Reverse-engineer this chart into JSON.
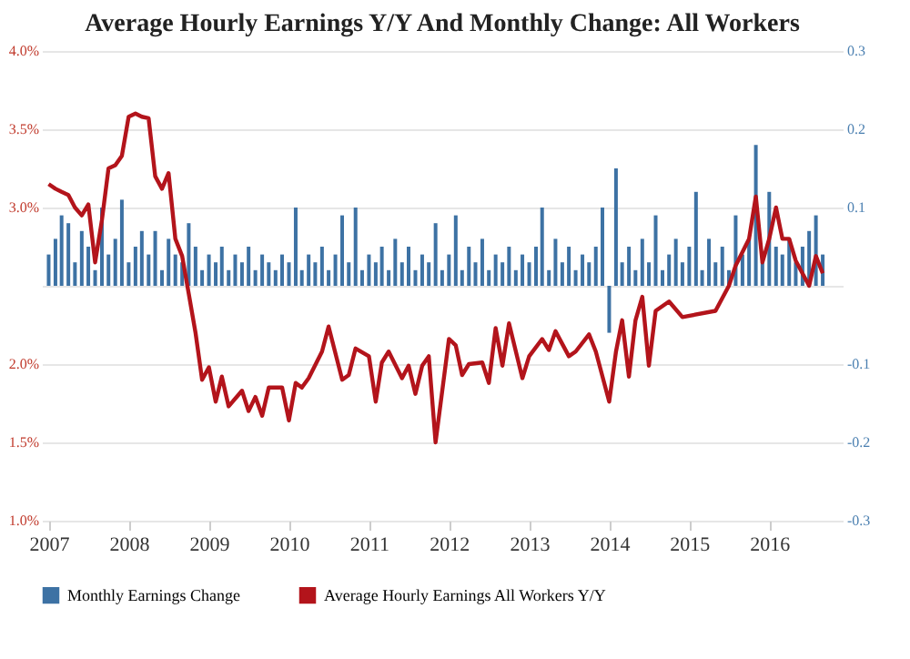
{
  "chart_data": {
    "type": "bar",
    "title": "Average Hourly Earnings Y/Y And Monthly Change: All Workers",
    "xlim": [
      "2006-12",
      "2016-12"
    ],
    "xticks": [
      {
        "value": "2007",
        "label": "2007"
      },
      {
        "value": "2008",
        "label": "2008"
      },
      {
        "value": "2009",
        "label": "2009"
      },
      {
        "value": "2010",
        "label": "2010"
      },
      {
        "value": "2011",
        "label": "2011"
      },
      {
        "value": "2012",
        "label": "2012"
      },
      {
        "value": "2013",
        "label": "2013"
      },
      {
        "value": "2014",
        "label": "2014"
      },
      {
        "value": "2015",
        "label": "2015"
      },
      {
        "value": "2016",
        "label": "2016"
      }
    ],
    "ylim": [
      1,
      4
    ],
    "yticks": [
      {
        "value": 1,
        "label": "1.0%"
      },
      {
        "value": 1.5,
        "label": "1.5%"
      },
      {
        "value": 2,
        "label": "2.0%"
      },
      {
        "value": 2.5,
        "label": null
      },
      {
        "value": 3,
        "label": "3.0%"
      },
      {
        "value": 3.5,
        "label": "3.5%"
      },
      {
        "value": 4,
        "label": "4.0%"
      }
    ],
    "y2lim": [
      -0.3,
      0.3
    ],
    "y2ticks": [
      -0.3,
      -0.2,
      -0.1,
      0.1,
      0.2,
      0.3
    ],
    "grid": "y",
    "legend": "bottom",
    "series": [
      {
        "name": "Monthly Earnings Change",
        "axis": "y2",
        "color": "#3d72a4",
        "x": [
          "2007-01",
          "2007-02",
          "2007-03",
          "2007-04",
          "2007-05",
          "2007-06",
          "2007-07",
          "2007-08",
          "2007-09",
          "2007-10",
          "2007-11",
          "2007-12",
          "2008-01",
          "2008-02",
          "2008-03",
          "2008-04",
          "2008-05",
          "2008-06",
          "2008-07",
          "2008-08",
          "2008-09",
          "2008-10",
          "2008-11",
          "2008-12",
          "2009-01",
          "2009-02",
          "2009-03",
          "2009-04",
          "2009-05",
          "2009-06",
          "2009-07",
          "2009-08",
          "2009-09",
          "2009-10",
          "2009-11",
          "2009-12",
          "2010-01",
          "2010-02",
          "2010-03",
          "2010-04",
          "2010-05",
          "2010-06",
          "2010-07",
          "2010-08",
          "2010-09",
          "2010-10",
          "2010-11",
          "2010-12",
          "2011-01",
          "2011-02",
          "2011-03",
          "2011-04",
          "2011-05",
          "2011-06",
          "2011-07",
          "2011-08",
          "2011-09",
          "2011-10",
          "2011-11",
          "2011-12",
          "2012-01",
          "2012-02",
          "2012-03",
          "2012-04",
          "2012-05",
          "2012-06",
          "2012-07",
          "2012-08",
          "2012-09",
          "2012-10",
          "2012-11",
          "2012-12",
          "2013-01",
          "2013-02",
          "2013-03",
          "2013-04",
          "2013-05",
          "2013-06",
          "2013-07",
          "2013-08",
          "2013-09",
          "2013-10",
          "2013-11",
          "2013-12",
          "2014-01",
          "2014-02",
          "2014-03",
          "2014-04",
          "2014-05",
          "2014-06",
          "2014-07",
          "2014-08",
          "2014-09",
          "2014-10",
          "2014-11",
          "2014-12",
          "2015-01",
          "2015-02",
          "2015-03",
          "2015-04",
          "2015-05",
          "2015-06",
          "2015-07",
          "2015-08",
          "2015-09",
          "2015-10",
          "2015-11",
          "2015-12",
          "2016-01",
          "2016-02",
          "2016-03",
          "2016-04",
          "2016-05",
          "2016-06",
          "2016-07",
          "2016-08",
          "2016-09"
        ],
        "values": [
          0.04,
          0.06,
          0.09,
          0.08,
          0.03,
          0.07,
          0.05,
          0.02,
          0.1,
          0.04,
          0.06,
          0.11,
          0.03,
          0.05,
          0.07,
          0.04,
          0.07,
          0.02,
          0.06,
          0.04,
          0.03,
          0.08,
          0.05,
          0.02,
          0.04,
          0.03,
          0.05,
          0.02,
          0.04,
          0.03,
          0.05,
          0.02,
          0.04,
          0.03,
          0.02,
          0.04,
          0.03,
          0.1,
          0.02,
          0.04,
          0.03,
          0.05,
          0.02,
          0.04,
          0.09,
          0.03,
          0.1,
          0.02,
          0.04,
          0.03,
          0.05,
          0.02,
          0.06,
          0.03,
          0.05,
          0.02,
          0.04,
          0.03,
          0.08,
          0.02,
          0.04,
          0.09,
          0.02,
          0.05,
          0.03,
          0.06,
          0.02,
          0.04,
          0.03,
          0.05,
          0.02,
          0.04,
          0.03,
          0.05,
          0.1,
          0.02,
          0.06,
          0.03,
          0.05,
          0.02,
          0.04,
          0.03,
          0.05,
          0.1,
          -0.06,
          0.15,
          0.03,
          0.05,
          0.02,
          0.06,
          0.03,
          0.09,
          0.02,
          0.04,
          0.06,
          0.03,
          0.05,
          0.12,
          0.02,
          0.06,
          0.03,
          0.05,
          0.02,
          0.09,
          0.04,
          0.06,
          0.18,
          0.03,
          0.12,
          0.05,
          0.04,
          0.06,
          0.03,
          0.05,
          0.07,
          0.09,
          0.04
        ]
      },
      {
        "name": "Average Hourly Earnings All Workers Y/Y",
        "type": "line",
        "axis": "y",
        "color": "#b3141b",
        "x": [
          "2007-01",
          "2007-02",
          "2007-03",
          "2007-04",
          "2007-05",
          "2007-06",
          "2007-07",
          "2007-08",
          "2007-09",
          "2007-10",
          "2007-11",
          "2007-12",
          "2008-01",
          "2008-02",
          "2008-03",
          "2008-04",
          "2008-05",
          "2008-06",
          "2008-07",
          "2008-08",
          "2008-09",
          "2008-10",
          "2008-11",
          "2008-12",
          "2009-01",
          "2009-02",
          "2009-03",
          "2009-04",
          "2009-06",
          "2009-07",
          "2009-08",
          "2009-09",
          "2009-10",
          "2009-12",
          "2010-01",
          "2010-02",
          "2010-03",
          "2010-04",
          "2010-06",
          "2010-07",
          "2010-09",
          "2010-10",
          "2010-11",
          "2011-01",
          "2011-02",
          "2011-03",
          "2011-04",
          "2011-06",
          "2011-07",
          "2011-08",
          "2011-09",
          "2011-10",
          "2011-11",
          "2012-01",
          "2012-02",
          "2012-03",
          "2012-04",
          "2012-06",
          "2012-07",
          "2012-08",
          "2012-09",
          "2012-10",
          "2012-12",
          "2013-01",
          "2013-03",
          "2013-04",
          "2013-05",
          "2013-07",
          "2013-08",
          "2013-10",
          "2013-11",
          "2014-01",
          "2014-02",
          "2014-03",
          "2014-04",
          "2014-05",
          "2014-06",
          "2014-07",
          "2014-08",
          "2014-10",
          "2014-12",
          "2015-05",
          "2015-07",
          "2015-08",
          "2015-10",
          "2015-11",
          "2015-12",
          "2016-01",
          "2016-02",
          "2016-03",
          "2016-04",
          "2016-05",
          "2016-07",
          "2016-08",
          "2016-09"
        ],
        "values": [
          3.15,
          3.12,
          3.1,
          3.08,
          3.0,
          2.95,
          3.02,
          2.65,
          2.92,
          3.25,
          3.27,
          3.33,
          3.58,
          3.6,
          3.58,
          3.57,
          3.2,
          3.12,
          3.22,
          2.8,
          2.69,
          2.45,
          2.2,
          1.9,
          1.98,
          1.76,
          1.92,
          1.73,
          1.83,
          1.7,
          1.79,
          1.67,
          1.85,
          1.85,
          1.64,
          1.88,
          1.85,
          1.91,
          2.08,
          2.24,
          1.9,
          1.93,
          2.1,
          2.05,
          1.76,
          2.01,
          2.08,
          1.91,
          1.99,
          1.81,
          1.99,
          2.05,
          1.5,
          2.16,
          2.12,
          1.93,
          2.0,
          2.01,
          1.88,
          2.23,
          1.99,
          2.26,
          1.91,
          2.05,
          2.16,
          2.09,
          2.21,
          2.05,
          2.08,
          2.19,
          2.08,
          1.76,
          2.08,
          2.28,
          1.92,
          2.28,
          2.43,
          1.99,
          2.34,
          2.4,
          2.3,
          2.34,
          2.5,
          2.63,
          2.8,
          3.07,
          2.65,
          2.8,
          3.0,
          2.8,
          2.8,
          2.66,
          2.5,
          2.69,
          2.58
        ]
      }
    ]
  }
}
